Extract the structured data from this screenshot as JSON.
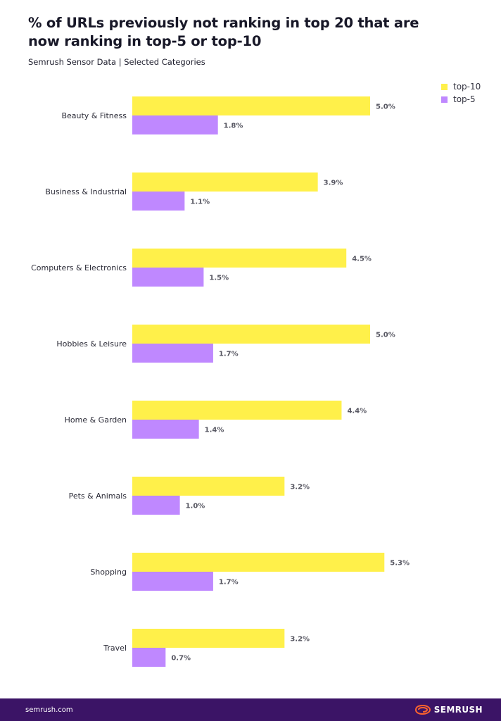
{
  "title": "% of URLs previously not ranking in top 20 that are\nnow ranking in top-5 or top-10",
  "subtitle": "Semrush Sensor Data | Selected Categories",
  "legend": {
    "items": [
      {
        "label": "top-10",
        "color": "#fff04a"
      },
      {
        "label": "top-5",
        "color": "#bf88ff"
      }
    ]
  },
  "chart_data": {
    "type": "bar",
    "orientation": "horizontal",
    "categories": [
      "Beauty & Fitness",
      "Business & Industrial",
      "Computers & Electronics",
      "Hobbies & Leisure",
      "Home & Garden",
      "Pets & Animals",
      "Shopping",
      "Travel"
    ],
    "series": [
      {
        "name": "top-10",
        "color": "#fff04a",
        "values": [
          5.0,
          3.9,
          4.5,
          5.0,
          4.4,
          3.2,
          5.3,
          3.2
        ],
        "labels": [
          "5.0%",
          "3.9%",
          "4.5%",
          "5.0%",
          "4.4%",
          "3.2%",
          "5.3%",
          "3.2%"
        ]
      },
      {
        "name": "top-5",
        "color": "#bf88ff",
        "values": [
          1.8,
          1.1,
          1.5,
          1.7,
          1.4,
          1.0,
          1.7,
          0.7
        ],
        "labels": [
          "1.8%",
          "1.1%",
          "1.5%",
          "1.7%",
          "1.4%",
          "1.0%",
          "1.7%",
          "0.7%"
        ]
      }
    ],
    "grid": false,
    "legend_position": "top-right"
  },
  "footer": {
    "url": "semrush.com",
    "brand": "SEMRUSH",
    "brand_color": "#ff642d",
    "background": "#3b1466"
  }
}
